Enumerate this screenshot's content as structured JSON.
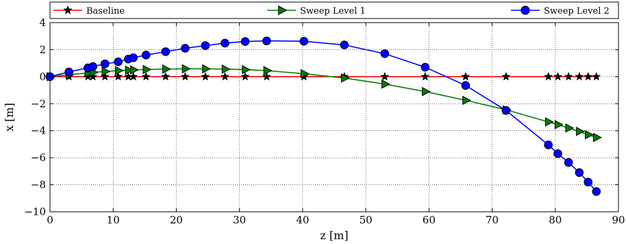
{
  "chart_data": {
    "type": "line",
    "xlabel": "z [m]",
    "ylabel": "x [m]",
    "xlim": [
      0,
      90
    ],
    "ylim": [
      -10,
      4
    ],
    "xticks": [
      0,
      10,
      20,
      30,
      40,
      50,
      60,
      70,
      80,
      90
    ],
    "yticks": [
      -10,
      -8,
      -6,
      -4,
      -2,
      0,
      2,
      4
    ],
    "xtick_labels": [
      "0",
      "10",
      "20",
      "30",
      "40",
      "50",
      "60",
      "70",
      "80",
      "90"
    ],
    "ytick_labels": [
      "−10",
      "−8",
      "−6",
      "−4",
      "−2",
      "0",
      "2",
      "4"
    ],
    "grid": true,
    "grid_style": "dotted",
    "legend_position": "top, horizontal",
    "series": [
      {
        "name": "Baseline",
        "color": "#ff0000",
        "marker": "star",
        "x": [
          0,
          3,
          6,
          6.8,
          8.7,
          10.8,
          12.4,
          13.2,
          15.2,
          18.3,
          21.4,
          24.6,
          27.7,
          30.9,
          34.3,
          40.2,
          46.6,
          53.0,
          59.4,
          65.8,
          72.2,
          78.9,
          80.4,
          82.1,
          83.8,
          85.2,
          86.5
        ],
        "y": [
          0,
          0,
          0,
          0,
          0,
          0,
          0,
          0,
          0,
          0,
          0,
          0,
          0,
          0,
          0,
          0,
          0,
          0,
          0,
          0,
          0,
          0,
          0,
          0,
          0,
          0,
          0
        ]
      },
      {
        "name": "Sweep Level 1",
        "color": "#008000",
        "marker": "triangle-right",
        "x": [
          0,
          3,
          6,
          6.8,
          8.7,
          10.8,
          12.4,
          13.2,
          15.2,
          18.3,
          21.4,
          24.6,
          27.7,
          30.9,
          34.3,
          40.2,
          46.6,
          53.0,
          59.4,
          65.8,
          72.2,
          78.9,
          80.4,
          82.1,
          83.8,
          85.2,
          86.5
        ],
        "y": [
          0,
          0.15,
          0.27,
          0.32,
          0.38,
          0.45,
          0.48,
          0.5,
          0.53,
          0.56,
          0.58,
          0.58,
          0.56,
          0.52,
          0.45,
          0.22,
          -0.1,
          -0.55,
          -1.1,
          -1.75,
          -2.45,
          -3.35,
          -3.55,
          -3.8,
          -4.05,
          -4.3,
          -4.5
        ]
      },
      {
        "name": "Sweep Level 2",
        "color": "#0000ff",
        "marker": "circle",
        "x": [
          0,
          3,
          6,
          6.8,
          8.7,
          10.8,
          12.4,
          13.2,
          15.2,
          18.3,
          21.4,
          24.6,
          27.7,
          30.9,
          34.3,
          40.2,
          46.6,
          53.0,
          59.4,
          65.8,
          72.2,
          78.9,
          80.4,
          82.1,
          83.8,
          85.2,
          86.5
        ],
        "y": [
          0,
          0.35,
          0.65,
          0.75,
          0.95,
          1.1,
          1.3,
          1.4,
          1.6,
          1.85,
          2.1,
          2.3,
          2.48,
          2.6,
          2.65,
          2.62,
          2.35,
          1.7,
          0.7,
          -0.65,
          -2.5,
          -5.05,
          -5.7,
          -6.35,
          -7.1,
          -7.8,
          -8.5
        ]
      }
    ]
  }
}
